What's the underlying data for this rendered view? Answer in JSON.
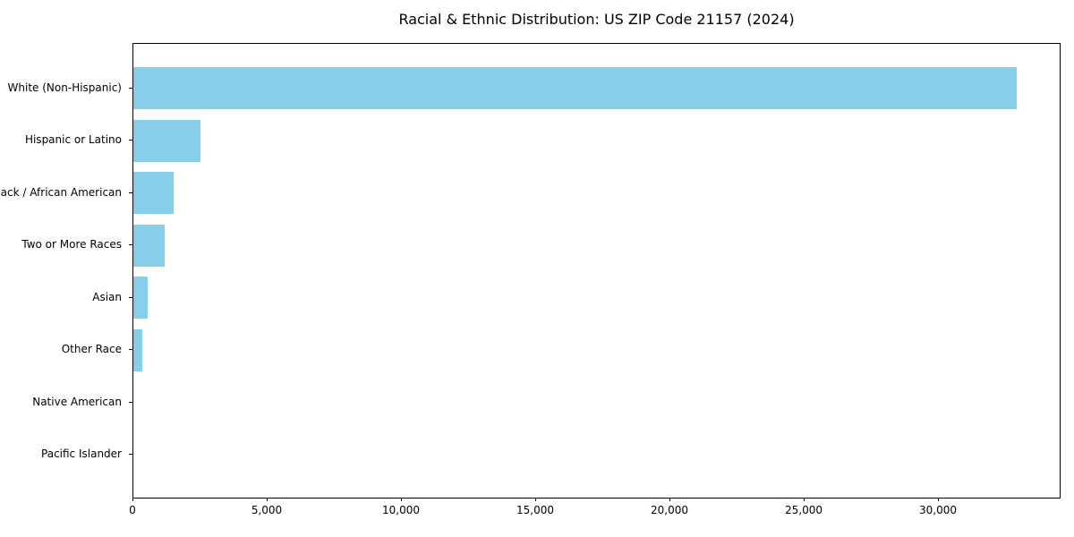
{
  "chart_data": {
    "type": "bar",
    "orientation": "horizontal",
    "title": "Racial & Ethnic Distribution: US ZIP Code 21157 (2024)",
    "categories": [
      "White (Non-Hispanic)",
      "Hispanic or Latino",
      "Black / African American",
      "Two or More Races",
      "Asian",
      "Other Race",
      "Native American",
      "Pacific Islander"
    ],
    "values": [
      32900,
      2500,
      1500,
      1150,
      520,
      330,
      0,
      0
    ],
    "xlabel": "",
    "ylabel": "",
    "xlim": [
      0,
      34550
    ],
    "xticks": [
      0,
      5000,
      10000,
      15000,
      20000,
      25000,
      30000
    ],
    "xtick_labels": [
      "0",
      "5,000",
      "10,000",
      "15,000",
      "20,000",
      "25,000",
      "30,000"
    ],
    "bar_color": "#87CEEB",
    "grid": false,
    "legend": null,
    "background_color": "#ffffff",
    "spine_color": "#000000",
    "text_color": "#000000"
  }
}
